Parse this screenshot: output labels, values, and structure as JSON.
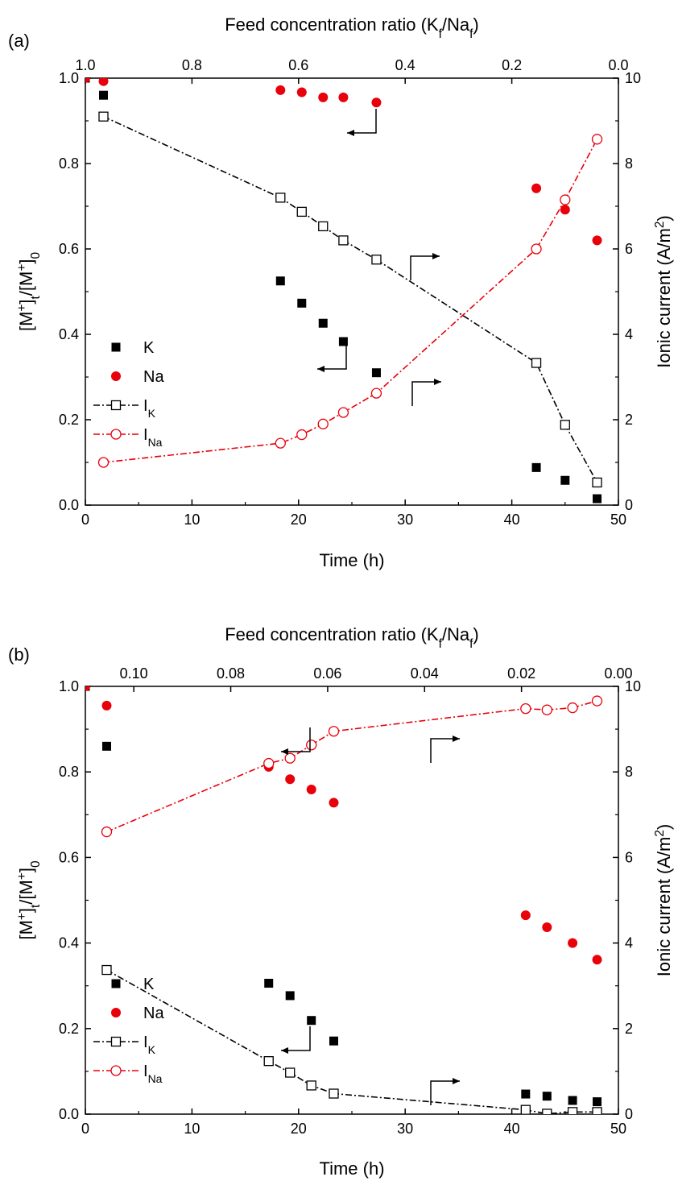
{
  "chart_data": [
    {
      "type": "scatter",
      "panel_label": "(a)",
      "top_axis_title": "Feed concentration ratio (K_f/Na_f)",
      "xlabel": "Time (h)",
      "ylabel_left": "[M+]t/[M+]0",
      "ylabel_right": "Ionic current (A/m2)",
      "xlim": [
        0,
        50
      ],
      "ylim_left": [
        0,
        1.0
      ],
      "ylim_right": [
        0,
        10
      ],
      "top_axis_range": [
        1.0,
        0.0
      ],
      "x_ticks": [
        "0",
        "10",
        "20",
        "30",
        "40",
        "50"
      ],
      "y_left_ticks": [
        "0.0",
        "0.2",
        "0.4",
        "0.6",
        "0.8",
        "1.0"
      ],
      "y_right_ticks": [
        "0",
        "2",
        "4",
        "6",
        "8",
        "10"
      ],
      "top_ticks": [
        "1.0",
        "0.8",
        "0.6",
        "0.4",
        "0.2",
        "0.0"
      ],
      "legend": [
        "K",
        "Na",
        "I_K",
        "I_Na"
      ],
      "legend_position": "bottom-left",
      "grid": false,
      "series": [
        {
          "name": "K",
          "axis": "left",
          "color": "#000000",
          "marker": "filled-square",
          "x": [
            0,
            1.7,
            18.3,
            20.3,
            22.3,
            24.2,
            27.3,
            42.3,
            45,
            48
          ],
          "y": [
            1.0,
            0.96,
            0.525,
            0.473,
            0.426,
            0.383,
            0.31,
            0.088,
            0.058,
            0.015
          ]
        },
        {
          "name": "Na",
          "axis": "left",
          "color": "#e8000b",
          "marker": "filled-circle",
          "x": [
            0,
            1.7,
            18.3,
            20.3,
            22.3,
            24.2,
            27.3,
            42.3,
            45,
            48
          ],
          "y": [
            1.0,
            0.993,
            0.972,
            0.967,
            0.955,
            0.955,
            0.943,
            0.742,
            0.692,
            0.62
          ]
        },
        {
          "name": "I_K",
          "axis": "right",
          "color": "#000000",
          "marker": "open-square",
          "line": "dash-dot",
          "x": [
            1.7,
            18.3,
            20.3,
            22.3,
            24.2,
            27.3,
            42.3,
            45,
            48
          ],
          "y": [
            9.1,
            7.2,
            6.87,
            6.53,
            6.2,
            5.75,
            3.33,
            1.88,
            0.53
          ]
        },
        {
          "name": "I_Na",
          "axis": "right",
          "color": "#e8000b",
          "marker": "open-circle",
          "line": "dash-dot",
          "x": [
            1.7,
            18.3,
            20.3,
            22.3,
            24.2,
            27.3,
            42.3,
            45,
            48
          ],
          "y": [
            1.0,
            1.45,
            1.65,
            1.9,
            2.17,
            2.62,
            6.0,
            7.15,
            8.57
          ]
        }
      ]
    },
    {
      "type": "scatter",
      "panel_label": "(b)",
      "top_axis_title": "Feed concentration ratio (K_f/Na_f)",
      "xlabel": "Time (h)",
      "ylabel_left": "[M+]t/[M+]0",
      "ylabel_right": "Ionic current (A/m2)",
      "xlim": [
        0,
        50
      ],
      "ylim_left": [
        0,
        1.0
      ],
      "ylim_right": [
        0,
        10
      ],
      "top_axis_range": [
        0.11,
        0.0
      ],
      "x_ticks": [
        "0",
        "10",
        "20",
        "30",
        "40",
        "50"
      ],
      "y_left_ticks": [
        "0.0",
        "0.2",
        "0.4",
        "0.6",
        "0.8",
        "1.0"
      ],
      "y_right_ticks": [
        "0",
        "2",
        "4",
        "6",
        "8",
        "10"
      ],
      "top_ticks": [
        "0.10",
        "0.08",
        "0.06",
        "0.04",
        "0.02",
        "0.00"
      ],
      "legend": [
        "K",
        "Na",
        "I_K",
        "I_Na"
      ],
      "legend_position": "bottom-left",
      "grid": false,
      "series": [
        {
          "name": "K",
          "axis": "left",
          "color": "#000000",
          "marker": "filled-square",
          "x": [
            0,
            2,
            17.2,
            19.2,
            21.2,
            23.3,
            41.3,
            43.3,
            45.7,
            48
          ],
          "y": [
            1.0,
            0.86,
            0.306,
            0.277,
            0.219,
            0.171,
            0.047,
            0.042,
            0.032,
            0.029
          ]
        },
        {
          "name": "Na",
          "axis": "left",
          "color": "#e8000b",
          "marker": "filled-circle",
          "x": [
            0,
            2,
            17.2,
            19.2,
            21.2,
            23.3,
            41.3,
            43.3,
            45.7,
            48
          ],
          "y": [
            1.0,
            0.955,
            0.812,
            0.783,
            0.759,
            0.728,
            0.465,
            0.437,
            0.4,
            0.361
          ]
        },
        {
          "name": "I_K",
          "axis": "right",
          "color": "#000000",
          "marker": "open-square",
          "line": "dash-dot",
          "x": [
            2,
            17.2,
            19.2,
            21.2,
            23.3,
            41.3,
            43.3,
            45.7,
            48
          ],
          "y": [
            3.37,
            1.24,
            0.97,
            0.67,
            0.48,
            0.1,
            0.01,
            0.05,
            0.05
          ]
        },
        {
          "name": "I_Na",
          "axis": "right",
          "color": "#e8000b",
          "marker": "open-circle",
          "line": "dash-dot",
          "x": [
            2,
            17.2,
            19.2,
            21.2,
            23.3,
            41.3,
            43.3,
            45.7,
            48
          ],
          "y": [
            6.6,
            8.2,
            8.32,
            8.63,
            8.95,
            9.48,
            9.45,
            9.5,
            9.66
          ]
        }
      ]
    }
  ]
}
